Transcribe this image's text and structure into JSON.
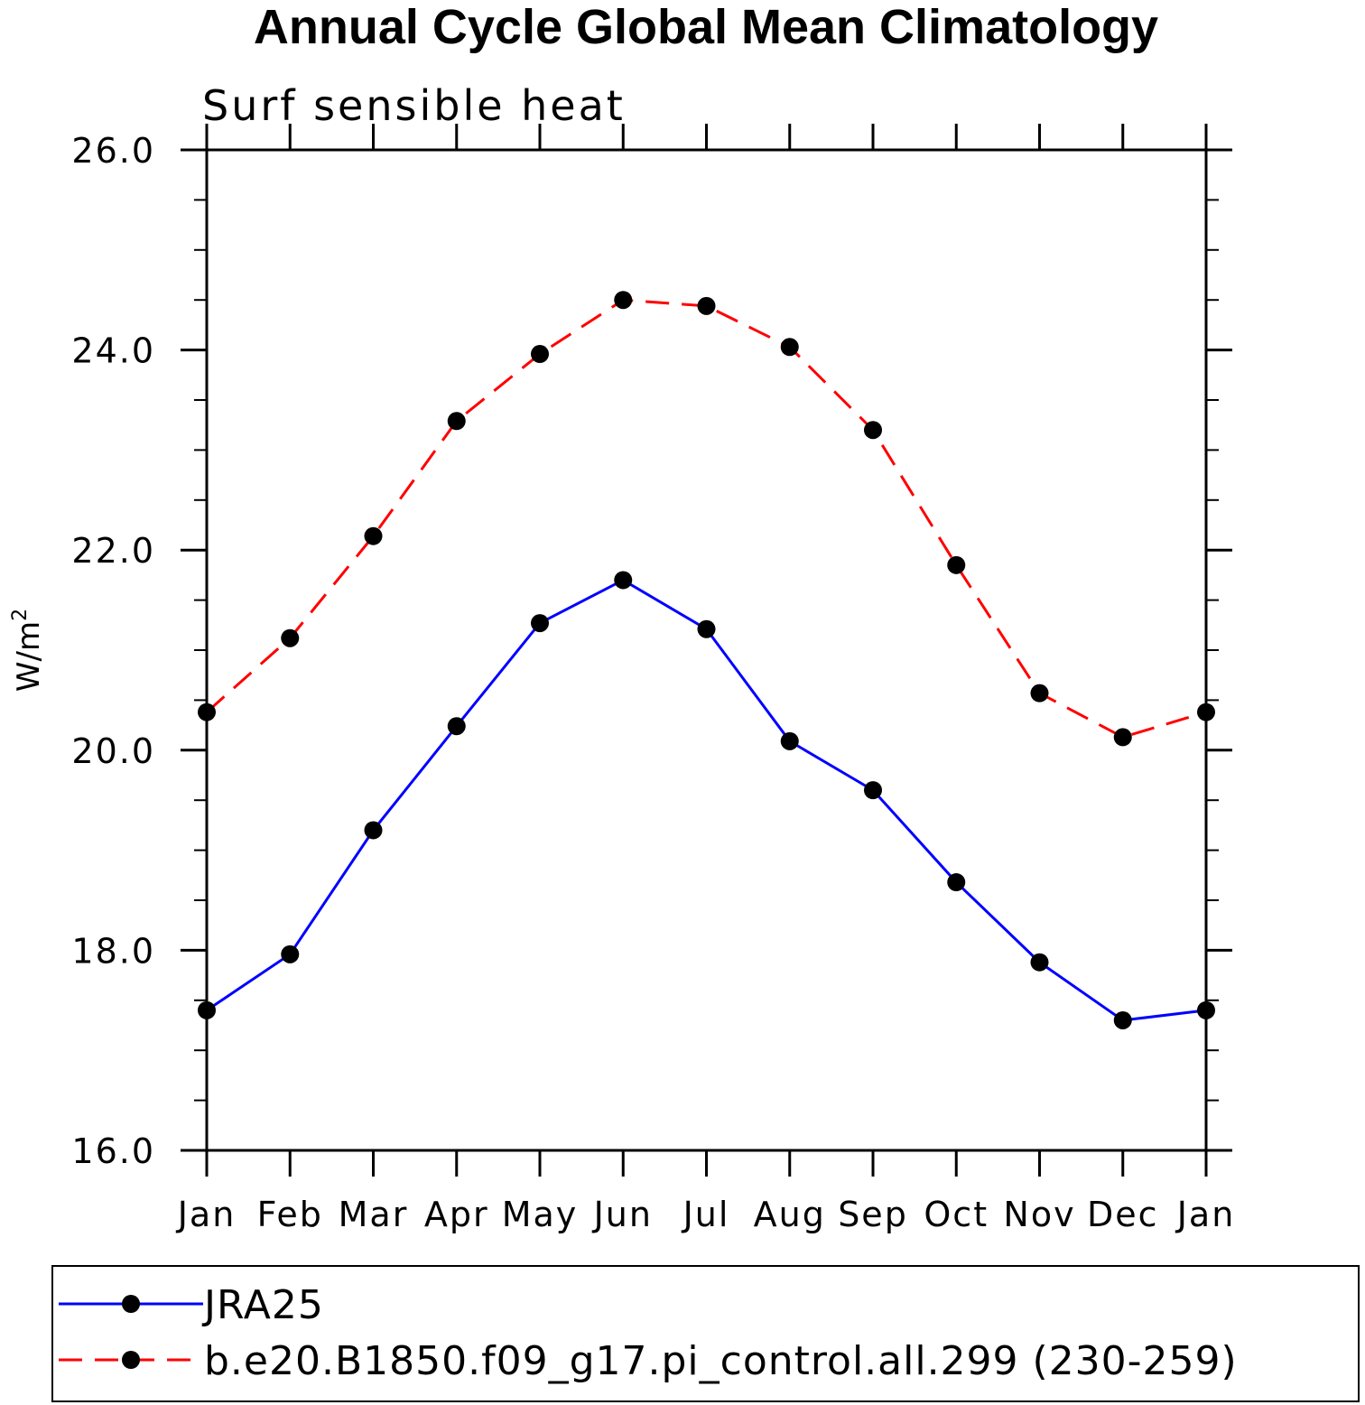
{
  "chart_data": {
    "type": "line",
    "title": "Annual Cycle Global Mean Climatology",
    "subtitle": "Surf sensible heat",
    "ylabel": "W/m",
    "ylabel_superscript": "2",
    "xlabel": "",
    "categories": [
      "Jan",
      "Feb",
      "Mar",
      "Apr",
      "May",
      "Jun",
      "Jul",
      "Aug",
      "Sep",
      "Oct",
      "Nov",
      "Dec",
      "Jan"
    ],
    "ylim": [
      16.0,
      26.0
    ],
    "yticks": [
      "16.0",
      "18.0",
      "20.0",
      "22.0",
      "24.0",
      "26.0"
    ],
    "ytick_values": [
      16,
      18,
      20,
      22,
      24,
      26
    ],
    "yminor_step": 0.5,
    "grid": false,
    "legend_position": "bottom",
    "series": [
      {
        "name": "JRA25",
        "color": "#0000ff",
        "dash": "solid",
        "values": [
          17.4,
          17.96,
          19.2,
          20.24,
          21.27,
          21.7,
          21.21,
          20.09,
          19.6,
          18.68,
          17.88,
          17.3,
          17.4
        ]
      },
      {
        "name": "b.e20.B1850.f09_g17.pi_control.all.299 (230-259)",
        "color": "#ff0000",
        "dash": "dashed",
        "values": [
          20.38,
          21.12,
          22.14,
          23.29,
          23.96,
          24.5,
          24.44,
          24.03,
          23.2,
          21.85,
          20.57,
          20.13,
          20.38
        ]
      }
    ]
  }
}
